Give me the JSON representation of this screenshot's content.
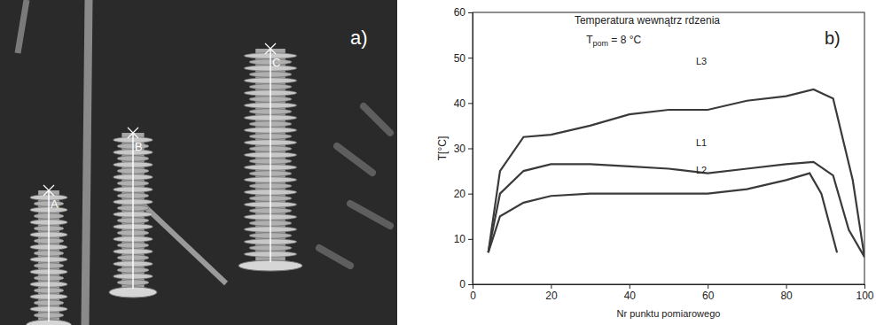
{
  "chart_data": {
    "type": "line",
    "title": "Temperatura wewnątrz rdzenia",
    "subtitle": [
      "T",
      "pom",
      " = 8 °C"
    ],
    "panel_label": "b)",
    "x_label": "Nr punktu pomiarowego",
    "y_label": "T[°C]",
    "xlim": [
      0,
      100
    ],
    "xticks": [
      0,
      20,
      40,
      60,
      80,
      100
    ],
    "ylim": [
      0,
      60
    ],
    "yticks": [
      0,
      10,
      20,
      30,
      40,
      50,
      60
    ],
    "grid": false,
    "series": [
      {
        "name": "L1",
        "color": "#3a3a3a",
        "line_style": "solid",
        "marker": "none",
        "x": [
          4,
          7,
          13,
          20,
          30,
          40,
          50,
          60,
          70,
          80,
          87,
          92,
          96,
          100
        ],
        "values": [
          7,
          20,
          25,
          26.5,
          26.5,
          26,
          25.5,
          24.5,
          25.5,
          26.5,
          27,
          24,
          12,
          6
        ]
      },
      {
        "name": "L2",
        "color": "#3a3a3a",
        "line_style": "solid",
        "marker": "none",
        "x": [
          4,
          7,
          13,
          20,
          30,
          40,
          50,
          60,
          70,
          80,
          86,
          89,
          93
        ],
        "values": [
          7,
          15,
          18,
          19.5,
          20,
          20,
          20,
          20,
          21,
          23,
          24.5,
          20,
          7
        ]
      },
      {
        "name": "L3",
        "color": "#3a3a3a",
        "line_style": "solid",
        "marker": "none",
        "x": [
          4,
          7,
          13,
          20,
          30,
          40,
          50,
          60,
          70,
          80,
          87,
          92,
          97,
          100
        ],
        "values": [
          7,
          25,
          32.5,
          33,
          35,
          37.5,
          38.5,
          38.5,
          40.5,
          41.5,
          43,
          41,
          23,
          6
        ]
      }
    ]
  },
  "image_panel": {
    "panel_label": "a)",
    "point_labels": [
      "A",
      "B",
      "C"
    ]
  }
}
